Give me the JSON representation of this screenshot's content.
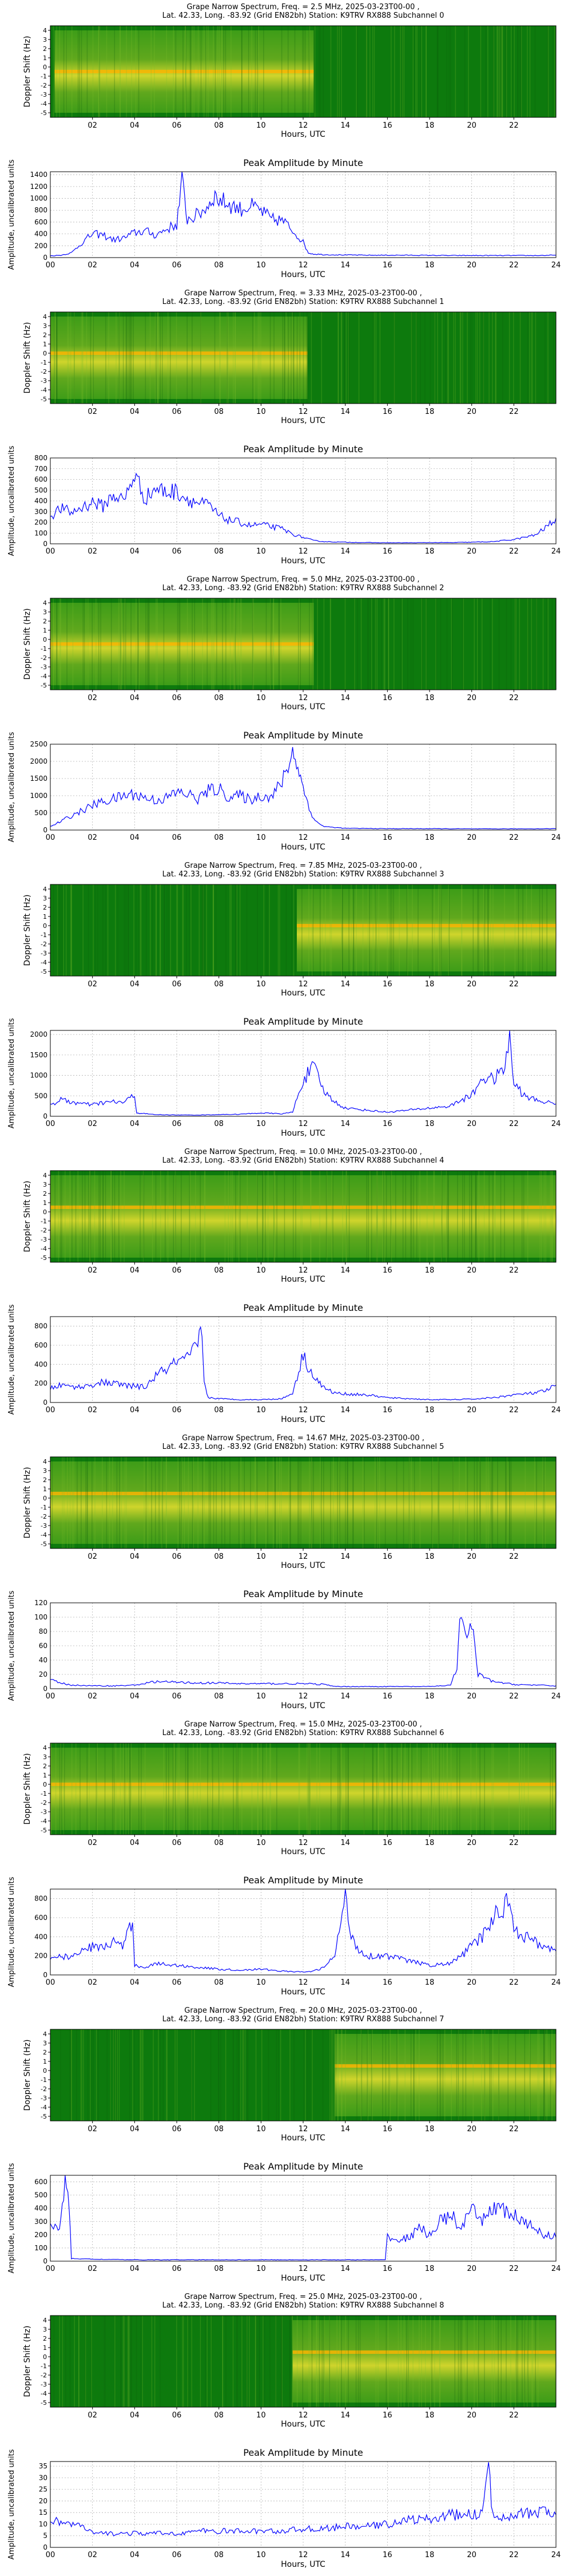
{
  "colors": {
    "line": "#0000ff",
    "spec_dark": "#0d7a0d",
    "spec_mid": "#46a31a",
    "spec_bright": "#f2e531",
    "spec_hot": "#ffb400",
    "grid": "#b0b0b0"
  },
  "common": {
    "amp_title": "Peak Amplitude by Minute",
    "amp_ylabel": "Amplitude, uncalibrated units",
    "spec_ylabel": "Doppler Shift (Hz)",
    "xlabel": "Hours, UTC",
    "spec_xticks": [
      "02",
      "04",
      "06",
      "08",
      "10",
      "12",
      "14",
      "16",
      "18",
      "20",
      "22"
    ],
    "amp_xticks": [
      "00",
      "02",
      "04",
      "06",
      "08",
      "10",
      "12",
      "14",
      "16",
      "18",
      "20",
      "22",
      "24"
    ],
    "spec_yticks": [
      "4",
      "3",
      "2",
      "1",
      "0",
      "-1",
      "-2",
      "-3",
      "-4",
      "-5"
    ]
  },
  "chart_data": [
    {
      "type": "heatmap+line",
      "spectrum_title_line1": "Grape Narrow Spectrum, Freq. = 2.5 MHz, 2025-03-23T00-00 ,",
      "spectrum_title_line2": "Lat. 42.33, Long. -83.92 (Grid EN82bh) Station: K9TRV RX888 Subchannel 0",
      "spectrum_activity": {
        "bright_start_hour": 0.2,
        "bright_end_hour": 12.5,
        "band_hz": -0.5
      },
      "amp_yticks": [
        "0",
        "200",
        "400",
        "600",
        "800",
        "1000",
        "1200",
        "1400"
      ],
      "ylim": [
        0,
        1450
      ],
      "x": [
        0,
        0.5,
        1,
        1.5,
        2,
        2.5,
        3,
        3.5,
        4,
        4.5,
        5,
        5.5,
        6,
        6.25,
        6.5,
        7,
        7.5,
        7.75,
        8,
        8.5,
        9,
        9.5,
        10,
        10.5,
        11,
        11.5,
        12,
        12.25,
        12.5,
        13,
        14,
        15,
        16,
        17,
        18,
        19,
        20,
        21,
        22,
        23,
        24
      ],
      "values": [
        30,
        40,
        80,
        250,
        400,
        380,
        300,
        330,
        420,
        450,
        380,
        480,
        560,
        1300,
        650,
        720,
        880,
        1050,
        980,
        900,
        820,
        870,
        790,
        640,
        630,
        460,
        260,
        80,
        60,
        50,
        45,
        40,
        40,
        40,
        38,
        35,
        35,
        35,
        35,
        35,
        40
      ]
    },
    {
      "type": "heatmap+line",
      "spectrum_title_line1": "Grape Narrow Spectrum, Freq. = 3.33 MHz, 2025-03-23T00-00 ,",
      "spectrum_title_line2": "Lat. 42.33, Long. -83.92 (Grid EN82bh) Station: K9TRV RX888 Subchannel 1",
      "spectrum_activity": {
        "bright_start_hour": 0.0,
        "bright_end_hour": 12.2,
        "band_hz": 0.0
      },
      "amp_yticks": [
        "0",
        "100",
        "200",
        "300",
        "400",
        "500",
        "600",
        "700",
        "800"
      ],
      "ylim": [
        0,
        800
      ],
      "x": [
        0,
        0.5,
        1,
        1.5,
        2,
        2.5,
        3,
        3.5,
        4,
        4.5,
        5,
        5.5,
        6,
        6.5,
        7,
        7.5,
        8,
        8.5,
        9,
        9.5,
        10,
        10.5,
        11,
        11.5,
        12,
        12.5,
        13,
        14,
        15,
        16,
        17,
        18,
        19,
        20,
        21,
        22,
        23,
        23.5,
        24
      ],
      "values": [
        260,
        330,
        290,
        340,
        390,
        350,
        460,
        400,
        650,
        420,
        520,
        480,
        490,
        420,
        380,
        360,
        260,
        220,
        200,
        170,
        180,
        160,
        140,
        90,
        60,
        30,
        20,
        15,
        12,
        10,
        10,
        12,
        12,
        15,
        20,
        40,
        80,
        150,
        240
      ]
    },
    {
      "type": "heatmap+line",
      "spectrum_title_line1": "Grape Narrow Spectrum, Freq. = 5.0 MHz, 2025-03-23T00-00 ,",
      "spectrum_title_line2": "Lat. 42.33, Long. -83.92 (Grid EN82bh) Station: K9TRV RX888 Subchannel 2",
      "spectrum_activity": {
        "bright_start_hour": 0.0,
        "bright_end_hour": 12.5,
        "band_hz": -0.5
      },
      "amp_yticks": [
        "0",
        "500",
        "1000",
        "1500",
        "2000",
        "2500"
      ],
      "ylim": [
        0,
        2500
      ],
      "x": [
        0,
        0.5,
        1,
        1.5,
        2,
        2.5,
        3,
        3.5,
        4,
        4.5,
        5,
        5.5,
        6,
        6.5,
        7,
        7.5,
        8,
        8.5,
        9,
        9.5,
        10,
        10.5,
        11,
        11.5,
        11.75,
        12,
        12.5,
        13,
        14,
        16,
        18,
        20,
        22,
        24
      ],
      "values": [
        100,
        250,
        420,
        560,
        720,
        830,
        900,
        1000,
        1050,
        940,
        870,
        930,
        1100,
        1050,
        900,
        1150,
        1200,
        950,
        1000,
        880,
        1010,
        960,
        1400,
        2250,
        1900,
        1200,
        300,
        100,
        50,
        40,
        40,
        35,
        35,
        40
      ]
    },
    {
      "type": "heatmap+line",
      "spectrum_title_line1": "Grape Narrow Spectrum, Freq. = 7.85 MHz, 2025-03-23T00-00 ,",
      "spectrum_title_line2": "Lat. 42.33, Long. -83.92 (Grid EN82bh) Station: K9TRV RX888 Subchannel 3",
      "spectrum_activity": {
        "bright_start_hour": 11.7,
        "bright_end_hour": 24.0,
        "band_hz": 0.0
      },
      "amp_yticks": [
        "0",
        "500",
        "1000",
        "1500",
        "2000"
      ],
      "ylim": [
        0,
        2100
      ],
      "x": [
        0,
        0.5,
        1,
        1.5,
        2,
        2.5,
        3,
        3.5,
        4,
        4.1,
        5,
        6,
        7,
        8,
        9,
        10,
        11,
        11.5,
        12,
        12.5,
        13,
        13.5,
        14,
        15,
        16,
        17,
        18,
        19,
        19.5,
        20,
        20.5,
        21,
        21.5,
        21.8,
        22,
        22.5,
        23,
        23.5,
        24
      ],
      "values": [
        280,
        400,
        350,
        300,
        280,
        330,
        350,
        340,
        520,
        80,
        40,
        30,
        30,
        40,
        50,
        80,
        60,
        100,
        900,
        1200,
        600,
        350,
        200,
        150,
        100,
        150,
        200,
        250,
        400,
        500,
        950,
        900,
        1100,
        1900,
        800,
        500,
        400,
        350,
        300
      ]
    },
    {
      "type": "heatmap+line",
      "spectrum_title_line1": "Grape Narrow Spectrum, Freq. = 10.0 MHz, 2025-03-23T00-00 ,",
      "spectrum_title_line2": "Lat. 42.33, Long. -83.92 (Grid EN82bh) Station: K9TRV RX888 Subchannel 4",
      "spectrum_activity": {
        "bright_start_hour": 0.0,
        "bright_end_hour": 24.0,
        "band_hz": 0.5
      },
      "amp_yticks": [
        "0",
        "200",
        "400",
        "600",
        "800"
      ],
      "ylim": [
        0,
        900
      ],
      "x": [
        0,
        0.5,
        1,
        1.5,
        2,
        2.5,
        3,
        3.5,
        4,
        4.5,
        5,
        5.5,
        6,
        6.5,
        7,
        7.2,
        7.3,
        7.5,
        8,
        9,
        10,
        11,
        11.5,
        12,
        12.3,
        12.6,
        13,
        13.5,
        14,
        15,
        16,
        17,
        18,
        19,
        20,
        21,
        22,
        23,
        23.5,
        24
      ],
      "values": [
        150,
        180,
        170,
        160,
        190,
        210,
        200,
        180,
        170,
        160,
        280,
        350,
        420,
        450,
        600,
        800,
        200,
        50,
        40,
        30,
        30,
        40,
        100,
        500,
        350,
        250,
        150,
        100,
        90,
        80,
        50,
        40,
        30,
        30,
        35,
        50,
        80,
        100,
        120,
        180
      ]
    },
    {
      "type": "heatmap+line",
      "spectrum_title_line1": "Grape Narrow Spectrum, Freq. = 14.67 MHz, 2025-03-23T00-00 ,",
      "spectrum_title_line2": "Lat. 42.33, Long. -83.92 (Grid EN82bh) Station: K9TRV RX888 Subchannel 5",
      "spectrum_activity": {
        "bright_start_hour": 0.0,
        "bright_end_hour": 24.0,
        "band_hz": 0.5
      },
      "amp_yticks": [
        "0",
        "20",
        "40",
        "60",
        "80",
        "100",
        "120"
      ],
      "ylim": [
        0,
        120
      ],
      "x": [
        0,
        0.5,
        1,
        2,
        3,
        4,
        5,
        6,
        7,
        8,
        9,
        10,
        11,
        12,
        13,
        13.5,
        14,
        15,
        16,
        17,
        18,
        19,
        19.3,
        19.5,
        19.7,
        20,
        20.3,
        21,
        22,
        23,
        24
      ],
      "values": [
        12,
        8,
        5,
        4,
        4,
        5,
        10,
        9,
        8,
        8,
        7,
        7,
        7,
        7,
        6,
        3,
        3,
        3,
        3,
        3,
        3,
        5,
        30,
        110,
        70,
        90,
        20,
        10,
        6,
        5,
        4
      ]
    },
    {
      "type": "heatmap+line",
      "spectrum_title_line1": "Grape Narrow Spectrum, Freq. = 15.0 MHz, 2025-03-23T00-00 ,",
      "spectrum_title_line2": "Lat. 42.33, Long. -83.92 (Grid EN82bh) Station: K9TRV RX888 Subchannel 6",
      "spectrum_activity": {
        "bright_start_hour": 0.0,
        "bright_end_hour": 24.0,
        "band_hz": 0.0
      },
      "amp_yticks": [
        "0",
        "200",
        "400",
        "600",
        "800"
      ],
      "ylim": [
        0,
        900
      ],
      "x": [
        0,
        0.5,
        1,
        1.5,
        2,
        2.5,
        3,
        3.5,
        3.9,
        4,
        4.5,
        5,
        6,
        7,
        8,
        9,
        10,
        11,
        12,
        12.5,
        13,
        13.5,
        14,
        14.2,
        14.5,
        15,
        16,
        17,
        18,
        19,
        19.5,
        20,
        20.5,
        21,
        21.5,
        21.8,
        22,
        22.5,
        23,
        23.5,
        24
      ],
      "values": [
        150,
        200,
        180,
        250,
        300,
        280,
        350,
        300,
        600,
        100,
        80,
        120,
        100,
        80,
        60,
        50,
        60,
        40,
        30,
        40,
        80,
        200,
        820,
        500,
        300,
        200,
        200,
        150,
        100,
        120,
        200,
        300,
        400,
        600,
        700,
        850,
        500,
        400,
        350,
        300,
        250
      ]
    },
    {
      "type": "heatmap+line",
      "spectrum_title_line1": "Grape Narrow Spectrum, Freq. = 20.0 MHz, 2025-03-23T00-00 ,",
      "spectrum_title_line2": "Lat. 42.33, Long. -83.92 (Grid EN82bh) Station: K9TRV RX888 Subchannel 7",
      "spectrum_activity": {
        "bright_start_hour": 13.5,
        "bright_end_hour": 24.0,
        "band_hz": 0.5
      },
      "amp_yticks": [
        "0",
        "100",
        "200",
        "300",
        "400",
        "500",
        "600"
      ],
      "ylim": [
        0,
        650
      ],
      "x": [
        0,
        0.3,
        0.5,
        0.7,
        0.9,
        1,
        2,
        4,
        6,
        8,
        10,
        12,
        14,
        15,
        15.9,
        16,
        16.5,
        17,
        17.5,
        18,
        18.5,
        19,
        19.5,
        20,
        20.5,
        21,
        21.5,
        22,
        22.5,
        23,
        23.5,
        24
      ],
      "values": [
        300,
        250,
        280,
        600,
        400,
        20,
        15,
        10,
        10,
        10,
        10,
        10,
        10,
        10,
        10,
        200,
        150,
        180,
        250,
        200,
        300,
        350,
        250,
        380,
        300,
        420,
        380,
        350,
        280,
        250,
        200,
        180
      ]
    },
    {
      "type": "heatmap+line",
      "spectrum_title_line1": "Grape Narrow Spectrum, Freq. = 25.0 MHz, 2025-03-23T00-00 ,",
      "spectrum_title_line2": "Lat. 42.33, Long. -83.92 (Grid EN82bh) Station: K9TRV RX888 Subchannel 8",
      "spectrum_activity": {
        "bright_start_hour": 11.5,
        "bright_end_hour": 24.0,
        "band_hz": 0.5
      },
      "amp_yticks": [
        "0",
        "5",
        "10",
        "15",
        "20",
        "25",
        "30",
        "35"
      ],
      "ylim": [
        0,
        37
      ],
      "x": [
        0,
        0.5,
        1,
        1.5,
        2,
        3,
        4,
        5,
        6,
        7,
        8,
        9,
        10,
        11,
        12,
        13,
        14,
        15,
        16,
        17,
        18,
        19,
        20,
        20.5,
        20.8,
        21,
        21.5,
        22,
        22.5,
        23,
        23.5,
        24
      ],
      "values": [
        12,
        11,
        10,
        9,
        6,
        6,
        6,
        6,
        6,
        7,
        7,
        7,
        7,
        7,
        8,
        8,
        9,
        9,
        10,
        12,
        12,
        14,
        14,
        15,
        34,
        13,
        14,
        14,
        15,
        14,
        16,
        14
      ]
    }
  ]
}
